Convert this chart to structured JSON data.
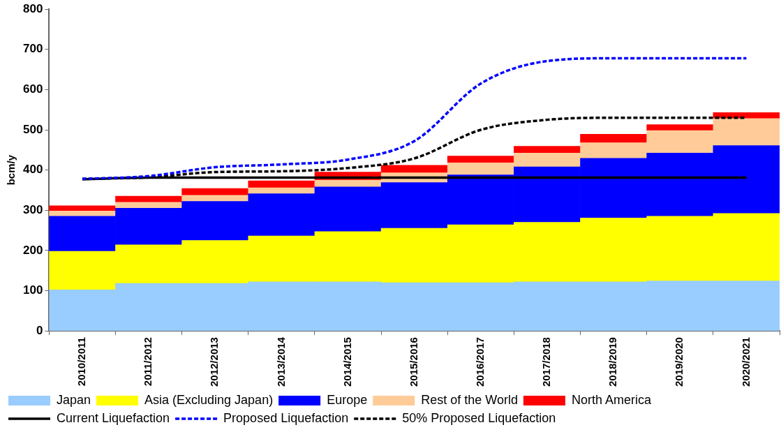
{
  "chart_data": {
    "type": "bar",
    "stacked": true,
    "ylabel": "bcm/y",
    "categories": [
      "2010/2011",
      "2011/2012",
      "2012/2013",
      "2013/2014",
      "2014/2015",
      "2015/2016",
      "2016/2017",
      "2017/2018",
      "2018/2019",
      "2019/2020",
      "2020/2021"
    ],
    "ylim": [
      0,
      800
    ],
    "yticks": [
      0,
      100,
      200,
      300,
      400,
      500,
      600,
      700,
      800
    ],
    "grid": false,
    "legend": "bottom",
    "marker": "none",
    "series": [
      {
        "name": "Japan",
        "color": "#99ccff",
        "values": [
          102,
          118,
          118,
          122,
          122,
          120,
          120,
          122,
          122,
          124,
          124
        ]
      },
      {
        "name": "Asia (Excluding Japan)",
        "color": "#ffff00",
        "values": [
          96,
          96,
          107,
          114,
          125,
          135,
          144,
          148,
          159,
          161,
          168
        ]
      },
      {
        "name": "Europe",
        "color": "#0000ff",
        "values": [
          87,
          91,
          97,
          105,
          111,
          114,
          124,
          138,
          148,
          157,
          169
        ]
      },
      {
        "name": "Rest of the World",
        "color": "#ffcc99",
        "values": [
          13,
          15,
          15,
          15,
          17,
          24,
          30,
          34,
          39,
          56,
          67
        ]
      },
      {
        "name": "North America",
        "color": "#ff0000",
        "values": [
          13,
          15,
          17,
          17,
          20,
          19,
          17,
          17,
          21,
          15,
          15
        ]
      },
      {
        "name": "Current Liquefaction",
        "type": "line",
        "line_style": "solid",
        "color": "#000000",
        "values": [
          377,
          381,
          381,
          381,
          381,
          381,
          381,
          381,
          381,
          381,
          381
        ]
      },
      {
        "name": "Proposed Liquefaction",
        "type": "line",
        "line_style": "dashed",
        "color": "#0000ff",
        "values": [
          378,
          385,
          407,
          414,
          426,
          472,
          615,
          671,
          678,
          678,
          678
        ]
      },
      {
        "name": "50% Proposed Liquefaction",
        "type": "line",
        "line_style": "dashed",
        "color": "#000000",
        "values": [
          378,
          382,
          395,
          397,
          405,
          429,
          500,
          525,
          530,
          530,
          530
        ]
      }
    ]
  }
}
